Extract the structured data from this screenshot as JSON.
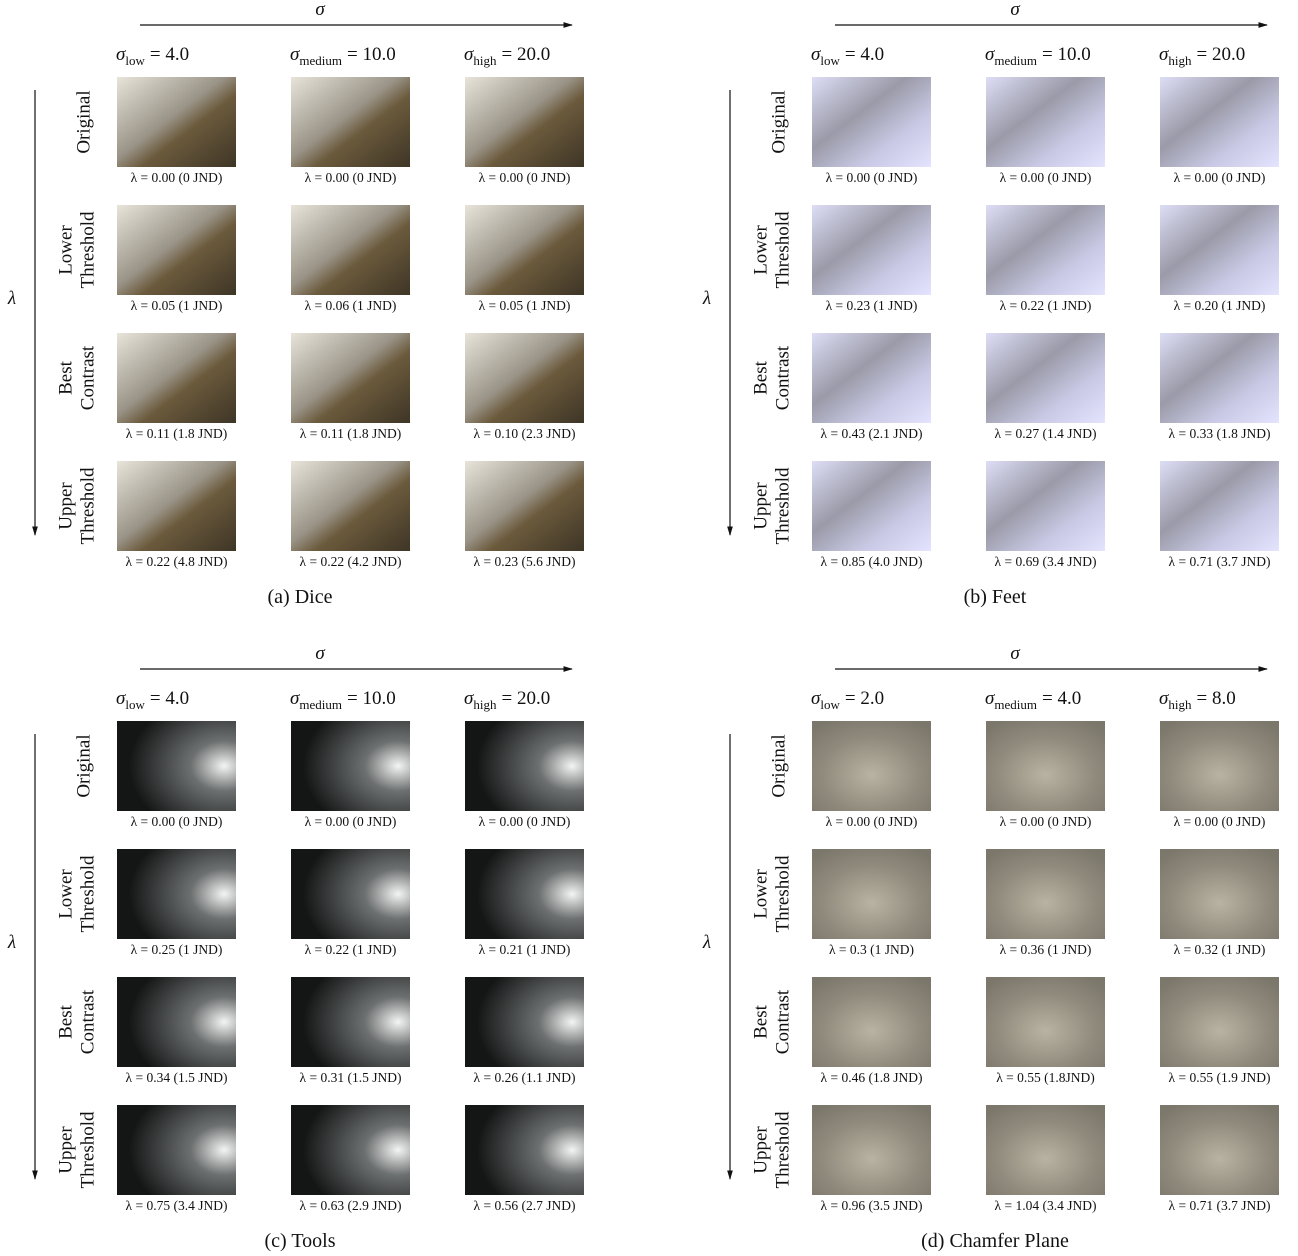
{
  "panels": [
    {
      "caption": "(a) Dice",
      "sigma": "σ",
      "lambda": "λ",
      "columns": [
        {
          "sub": "low",
          "eq": "= 4.0"
        },
        {
          "sub": "medium",
          "eq": "= 10.0"
        },
        {
          "sub": "high",
          "eq": "= 20.0"
        }
      ],
      "rows": [
        {
          "label": [
            "Original"
          ],
          "captions": [
            "λ = 0.00 (0 JND)",
            "λ = 0.00 (0 JND)",
            "λ = 0.00 (0 JND)"
          ]
        },
        {
          "label": [
            "Lower",
            "Threshold"
          ],
          "captions": [
            "λ = 0.05 (1 JND)",
            "λ = 0.06 (1 JND)",
            "λ = 0.05 (1 JND)"
          ]
        },
        {
          "label": [
            "Best",
            "Contrast"
          ],
          "captions": [
            "λ = 0.11 (1.8 JND)",
            "λ = 0.11 (1.8 JND)",
            "λ = 0.10 (2.3 JND)"
          ]
        },
        {
          "label": [
            "Upper",
            "Threshold"
          ],
          "captions": [
            "λ = 0.22 (4.8 JND)",
            "λ = 0.22 (4.2 JND)",
            "λ = 0.23 (5.6 JND)"
          ]
        }
      ]
    },
    {
      "caption": "(b) Feet",
      "sigma": "σ",
      "lambda": "λ",
      "columns": [
        {
          "sub": "low",
          "eq": "= 4.0"
        },
        {
          "sub": "medium",
          "eq": "= 10.0"
        },
        {
          "sub": "high",
          "eq": "= 20.0"
        }
      ],
      "rows": [
        {
          "label": [
            "Original"
          ],
          "captions": [
            "λ = 0.00 (0 JND)",
            "λ = 0.00 (0 JND)",
            "λ = 0.00 (0 JND)"
          ]
        },
        {
          "label": [
            "Lower",
            "Threshold"
          ],
          "captions": [
            "λ = 0.23 (1 JND)",
            "λ = 0.22 (1 JND)",
            "λ = 0.20 (1 JND)"
          ]
        },
        {
          "label": [
            "Best",
            "Contrast"
          ],
          "captions": [
            "λ = 0.43 (2.1 JND)",
            "λ = 0.27 (1.4 JND)",
            "λ = 0.33 (1.8 JND)"
          ]
        },
        {
          "label": [
            "Upper",
            "Threshold"
          ],
          "captions": [
            "λ = 0.85 (4.0 JND)",
            "λ = 0.69 (3.4 JND)",
            "λ = 0.71 (3.7 JND)"
          ]
        }
      ]
    },
    {
      "caption": "(c) Tools",
      "sigma": "σ",
      "lambda": "λ",
      "columns": [
        {
          "sub": "low",
          "eq": "= 4.0"
        },
        {
          "sub": "medium",
          "eq": "= 10.0"
        },
        {
          "sub": "high",
          "eq": "= 20.0"
        }
      ],
      "rows": [
        {
          "label": [
            "Original"
          ],
          "captions": [
            "λ = 0.00 (0 JND)",
            "λ = 0.00 (0 JND)",
            "λ = 0.00 (0 JND)"
          ]
        },
        {
          "label": [
            "Lower",
            "Threshold"
          ],
          "captions": [
            "λ = 0.25 (1 JND)",
            "λ = 0.22 (1 JND)",
            "λ = 0.21 (1 JND)"
          ]
        },
        {
          "label": [
            "Best",
            "Contrast"
          ],
          "captions": [
            "λ = 0.34 (1.5 JND)",
            "λ = 0.31 (1.5 JND)",
            "λ = 0.26 (1.1 JND)"
          ]
        },
        {
          "label": [
            "Upper",
            "Threshold"
          ],
          "captions": [
            "λ = 0.75 (3.4 JND)",
            "λ = 0.63 (2.9 JND)",
            "λ = 0.56 (2.7 JND)"
          ]
        }
      ]
    },
    {
      "caption": "(d) Chamfer Plane",
      "sigma": "σ",
      "lambda": "λ",
      "columns": [
        {
          "sub": "low",
          "eq": "= 2.0"
        },
        {
          "sub": "medium",
          "eq": "= 4.0"
        },
        {
          "sub": "high",
          "eq": "= 8.0"
        }
      ],
      "rows": [
        {
          "label": [
            "Original"
          ],
          "captions": [
            "λ = 0.00 (0 JND)",
            "λ = 0.00 (0 JND)",
            "λ = 0.00 (0 JND)"
          ]
        },
        {
          "label": [
            "Lower",
            "Threshold"
          ],
          "captions": [
            "λ = 0.3 (1 JND)",
            "λ = 0.36 (1 JND)",
            "λ = 0.32 (1 JND)"
          ]
        },
        {
          "label": [
            "Best",
            "Contrast"
          ],
          "captions": [
            "λ = 0.46 (1.8 JND)",
            "λ = 0.55 (1.8JND)",
            "λ = 0.55 (1.9 JND)"
          ]
        },
        {
          "label": [
            "Upper",
            "Threshold"
          ],
          "captions": [
            "λ = 0.96 (3.5 JND)",
            "λ = 1.04 (3.4 JND)",
            "λ = 0.71 (3.7 JND)"
          ]
        }
      ]
    }
  ]
}
